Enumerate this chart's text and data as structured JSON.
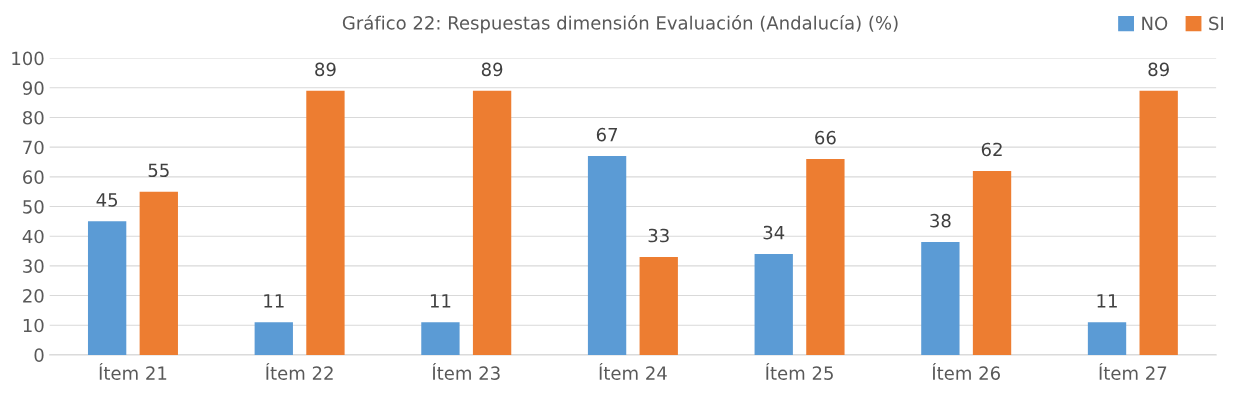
{
  "chart_data": {
    "type": "bar",
    "title": "Gráfico 22: Respuestas dimensión Evaluación (Andalucía) (%)",
    "categories": [
      "Ítem 21",
      "Ítem 22",
      "Ítem 23",
      "Ítem 24",
      "Ítem 25",
      "Ítem 26",
      "Ítem 27"
    ],
    "series": [
      {
        "name": "NO",
        "color": "#5b9bd5",
        "values": [
          45,
          11,
          11,
          67,
          34,
          38,
          11
        ]
      },
      {
        "name": "SI",
        "color": "#ed7d31",
        "values": [
          55,
          89,
          89,
          33,
          66,
          62,
          89
        ]
      }
    ],
    "ylim": [
      0,
      100
    ],
    "yticks": [
      0,
      10,
      20,
      30,
      40,
      50,
      60,
      70,
      80,
      90,
      100
    ],
    "grid": "y",
    "legend": "top right",
    "data_labels": true
  }
}
